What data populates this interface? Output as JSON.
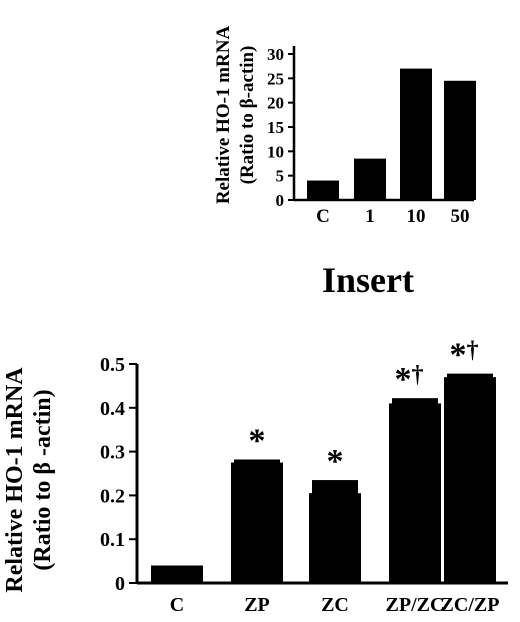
{
  "chart_data": [
    {
      "type": "bar",
      "categories": [
        "C",
        "1",
        "10",
        "50"
      ],
      "values": [
        4,
        8.5,
        27,
        24.5
      ],
      "title": "",
      "xlabel": "",
      "ylabel_line1": "Relative HO-1 mRNA",
      "ylabel_line2": "(Ratio to β-actin)",
      "ylim": [
        0,
        30
      ],
      "yticks": [
        "0",
        "5",
        "10",
        "15",
        "20",
        "25",
        "30"
      ],
      "grid": false,
      "bar_color": "#000000"
    },
    {
      "type": "bar",
      "categories": [
        "C",
        "ZP",
        "ZC",
        "ZP/ZC",
        "ZC/ZP"
      ],
      "values": [
        0.04,
        0.275,
        0.205,
        0.41,
        0.47
      ],
      "errors": [
        0,
        0.007,
        0.03,
        0.012,
        0.008
      ],
      "annotations": [
        "",
        "*",
        "*",
        "*†",
        "*†"
      ],
      "title": "Insert",
      "xlabel": "",
      "ylabel_line1": "Relative HO-1 mRNA",
      "ylabel_line2": "(Ratio to β -actin)",
      "ylim": [
        0,
        0.5
      ],
      "yticks": [
        "0",
        "0.1",
        "0.2",
        "0.3",
        "0.4",
        "0.5"
      ],
      "grid": false,
      "bar_color": "#000000"
    }
  ]
}
